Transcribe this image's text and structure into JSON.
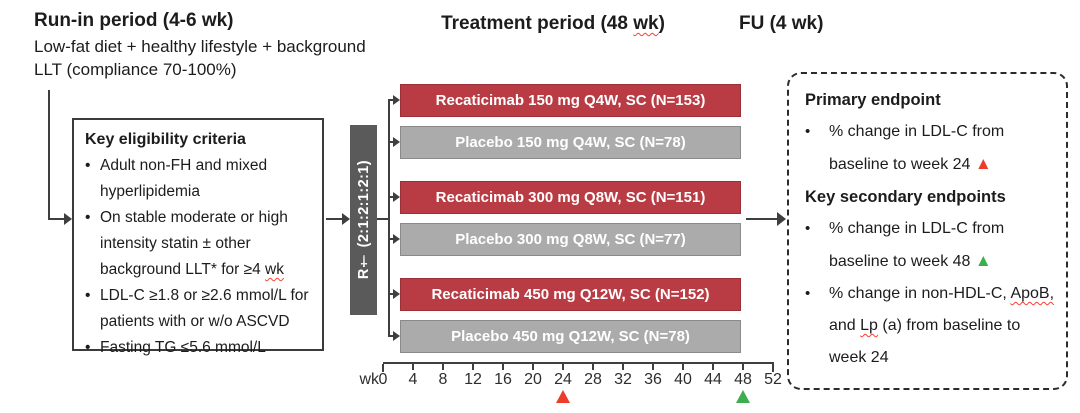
{
  "headers": {
    "run_in_title": "Run-in period (4-6 wk)",
    "run_in_sub": "Low-fat diet + healthy lifestyle + background LLT (compliance 70-100%)",
    "treatment_title_pre": "Treatment period (48 ",
    "treatment_title_wavy": "wk",
    "treatment_title_post": ")",
    "fu_title": "FU (4 wk)"
  },
  "eligibility": {
    "title": "Key eligibility criteria",
    "bullet1": "Adult non-FH and mixed hyperlipidemia",
    "bullet2_pre": "On stable moderate or high intensity statin ± other background LLT* for ≥4 ",
    "bullet2_wavy": "wk",
    "bullet3": "LDL-C ≥1.8 or ≥2.6 mmol/L for patients with or w/o ASCVD",
    "bullet4": "Fasting TG ≤5.6 mmol/L"
  },
  "randomization": {
    "label": "R† (2:1:2:1:2:1)"
  },
  "arms": [
    {
      "type": "recaticimab",
      "label": "Recaticimab 150 mg Q4W, SC (N=153)"
    },
    {
      "type": "placebo",
      "label": "Placebo 150 mg Q4W, SC (N=78)"
    },
    {
      "type": "recaticimab",
      "label": "Recaticimab 300 mg Q8W, SC (N=151)"
    },
    {
      "type": "placebo",
      "label": "Placebo 300 mg Q8W, SC (N=77)"
    },
    {
      "type": "recaticimab",
      "label": "Recaticimab 450 mg Q12W, SC (N=152)"
    },
    {
      "type": "placebo",
      "label": "Placebo 450 mg Q12W, SC (N=78)"
    }
  ],
  "axis": {
    "unit_label": "wk",
    "ticks": [
      "0",
      "4",
      "8",
      "12",
      "16",
      "20",
      "24",
      "28",
      "32",
      "36",
      "40",
      "44",
      "48",
      "52"
    ],
    "total_weeks": 52,
    "markers": [
      {
        "week": 24,
        "symbol": "▲",
        "color": "#ee3c2a",
        "name": "primary-endpoint-marker"
      },
      {
        "week": 48,
        "symbol": "▲",
        "color": "#3cae4d",
        "name": "secondary-endpoint-marker"
      }
    ]
  },
  "endpoints": {
    "primary_title": "Primary endpoint",
    "primary_b1_text": "% change in LDL-C from baseline to week 24 ",
    "primary_b1_marker": "▲",
    "secondary_title": "Key secondary endpoints",
    "secondary_b1_text": "% change in LDL-C from baseline to week 48 ",
    "secondary_b1_marker": "▲",
    "secondary_b2_seg1": "% change in non-HDL-C, ",
    "secondary_b2_wavy1": "ApoB,",
    "secondary_b2_seg2": " and ",
    "secondary_b2_wavy2": "Lp",
    "secondary_b2_seg3": " (a) from baseline to week 24"
  },
  "glyphs": {
    "bullet": "•"
  },
  "colors": {
    "recaticimab_bar": "#b93c44",
    "placebo_bar": "#ababab",
    "randomization_bar": "#5a5a5a",
    "primary_marker": "#ee3c2a",
    "secondary_marker": "#3cae4d"
  }
}
